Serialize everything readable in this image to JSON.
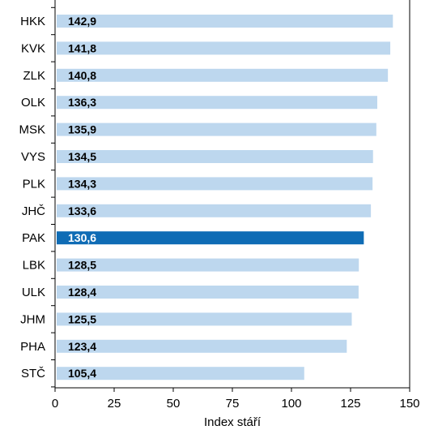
{
  "chart_data": {
    "type": "bar",
    "orientation": "horizontal",
    "categories": [
      "HKK",
      "KVK",
      "ZLK",
      "OLK",
      "MSK",
      "VYS",
      "PLK",
      "JHČ",
      "PAK",
      "LBK",
      "ULK",
      "JHM",
      "PHA",
      "STČ"
    ],
    "values": [
      142.9,
      141.8,
      140.8,
      136.3,
      135.9,
      134.5,
      134.3,
      133.6,
      130.6,
      128.5,
      128.4,
      125.5,
      123.4,
      105.4
    ],
    "value_labels": [
      "142,9",
      "141,8",
      "140,8",
      "136,3",
      "135,9",
      "134,5",
      "134,3",
      "133,6",
      "130,6",
      "128,5",
      "128,4",
      "125,5",
      "123,4",
      "105,4"
    ],
    "highlight_index": 8,
    "xlabel": "Index stáří",
    "xlim": [
      0,
      150
    ],
    "xticks": [
      0,
      25,
      50,
      75,
      100,
      125,
      150
    ],
    "grid": false,
    "colors": {
      "bar": "#bdd7ee",
      "highlight_bar": "#0f6cb5",
      "label": "#000000",
      "highlight_label": "#ffffff",
      "axis": "#000000"
    }
  }
}
